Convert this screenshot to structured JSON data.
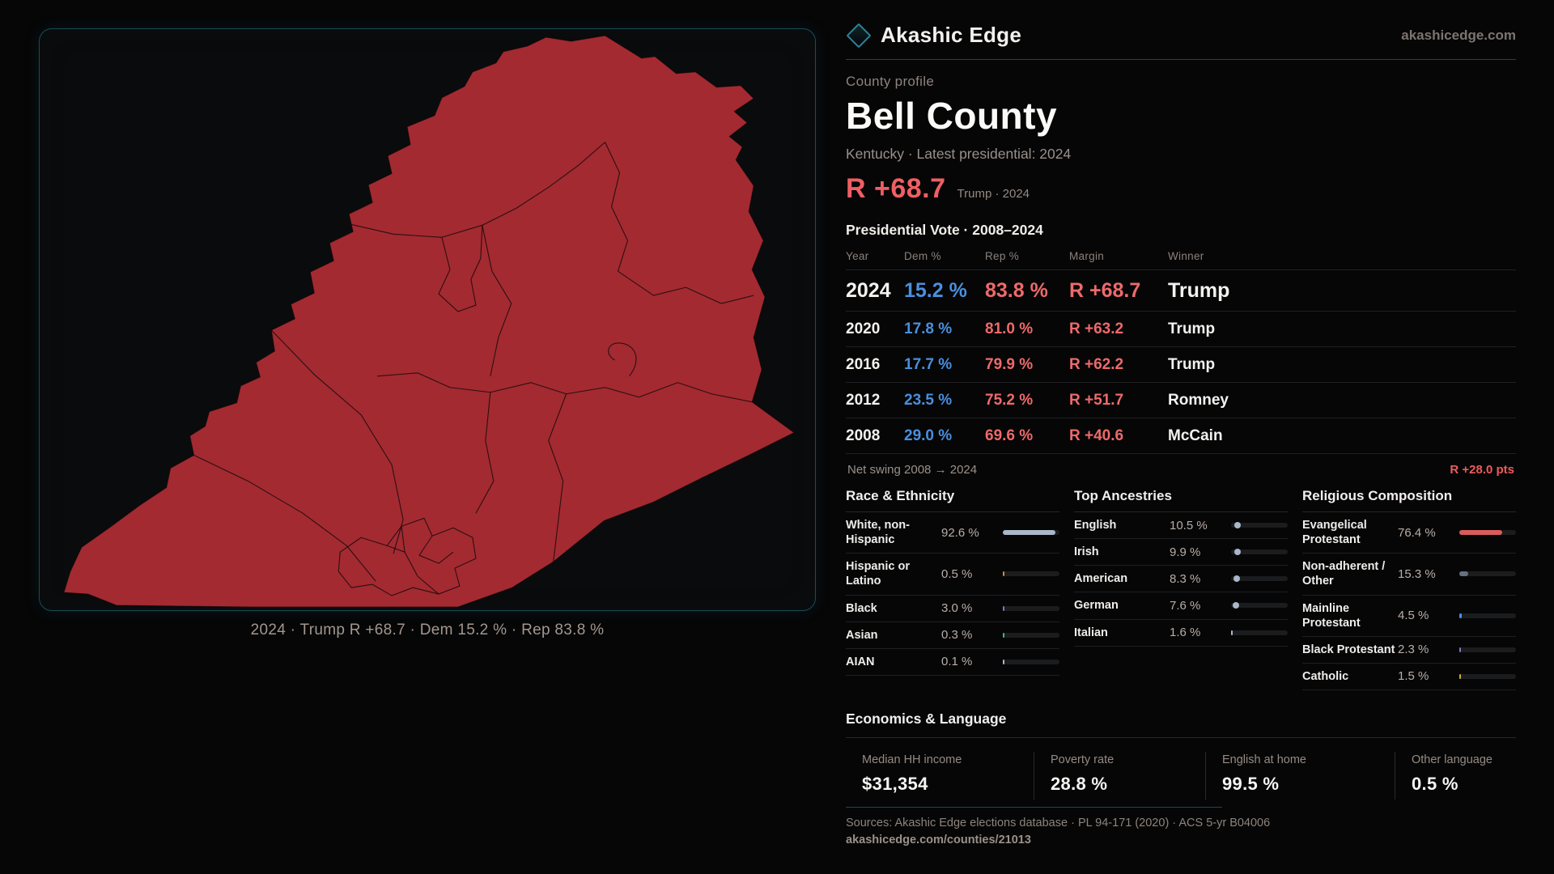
{
  "brand": {
    "name": "Akashic Edge",
    "site": "akashicedge.com",
    "accent_teal": "#2d8398"
  },
  "profile": {
    "kicker": "County profile",
    "title": "Bell County",
    "subtitle": "Kentucky · Latest presidential: 2024",
    "headline_margin": "R +68.7",
    "headline_note": "Trump · 2024"
  },
  "vote_table": {
    "title": "Presidential Vote · 2008–2024",
    "columns": [
      "Year",
      "Dem %",
      "Rep %",
      "Margin",
      "Winner"
    ],
    "dem_color": "#4a8fdd",
    "rep_color": "#ee6a6a",
    "rows": [
      {
        "year": "2024",
        "dem": "15.2 %",
        "rep": "83.8 %",
        "margin": "R +68.7",
        "winner": "Trump"
      },
      {
        "year": "2020",
        "dem": "17.8 %",
        "rep": "81.0 %",
        "margin": "R +63.2",
        "winner": "Trump"
      },
      {
        "year": "2016",
        "dem": "17.7 %",
        "rep": "79.9 %",
        "margin": "R +62.2",
        "winner": "Trump"
      },
      {
        "year": "2012",
        "dem": "23.5 %",
        "rep": "75.2 %",
        "margin": "R +51.7",
        "winner": "Romney"
      },
      {
        "year": "2008",
        "dem": "29.0 %",
        "rep": "69.6 %",
        "margin": "R +40.6",
        "winner": "McCain"
      }
    ]
  },
  "net_swing": {
    "label": "Net swing 2008 → 2024",
    "value": "R +28.0 pts"
  },
  "demographics": {
    "race": {
      "title": "Race & Ethnicity",
      "rows": [
        {
          "label": "White, non-Hispanic",
          "value": "92.6 %",
          "pct": 92.6,
          "color": "#a9b7c9",
          "kind": "bar"
        },
        {
          "label": "Hispanic or Latino",
          "value": "0.5 %",
          "pct": 0.5,
          "color": "#cf8a33",
          "kind": "bar"
        },
        {
          "label": "Black",
          "value": "3.0 %",
          "pct": 3.0,
          "color": "#8a70cc",
          "kind": "bar"
        },
        {
          "label": "Asian",
          "value": "0.3 %",
          "pct": 0.3,
          "color": "#35b98a",
          "kind": "bar"
        },
        {
          "label": "AIAN",
          "value": "0.1 %",
          "pct": 0.1,
          "color": "#a9b7c9",
          "kind": "bar"
        }
      ]
    },
    "ancestry": {
      "title": "Top Ancestries",
      "rows": [
        {
          "label": "English",
          "value": "10.5 %",
          "pct": 10.5,
          "color": "#a9b7c9",
          "kind": "dot"
        },
        {
          "label": "Irish",
          "value": "9.9 %",
          "pct": 9.9,
          "color": "#a9b7c9",
          "kind": "dot"
        },
        {
          "label": "American",
          "value": "8.3 %",
          "pct": 8.3,
          "color": "#a9b7c9",
          "kind": "dot"
        },
        {
          "label": "German",
          "value": "7.6 %",
          "pct": 7.6,
          "color": "#a9b7c9",
          "kind": "dot"
        },
        {
          "label": "Italian",
          "value": "1.6 %",
          "pct": 1.6,
          "color": "#a9b7c9",
          "kind": "bar"
        }
      ]
    },
    "religion": {
      "title": "Religious Composition",
      "rows": [
        {
          "label": "Evangelical Protestant",
          "value": "76.4 %",
          "pct": 76.4,
          "color": "#d95c5c",
          "kind": "bar"
        },
        {
          "label": "Non-adherent / Other",
          "value": "15.3 %",
          "pct": 15.3,
          "color": "#667083",
          "kind": "bar"
        },
        {
          "label": "Mainline Protestant",
          "value": "4.5 %",
          "pct": 4.5,
          "color": "#4a90e2",
          "kind": "bar"
        },
        {
          "label": "Black Protestant",
          "value": "2.3 %",
          "pct": 2.3,
          "color": "#8a70cc",
          "kind": "bar"
        },
        {
          "label": "Catholic",
          "value": "1.5 %",
          "pct": 1.5,
          "color": "#d3ac35",
          "kind": "bar"
        }
      ]
    }
  },
  "economics": {
    "title": "Economics & Language",
    "stats": [
      {
        "label": "Median HH income",
        "value": "$31,354"
      },
      {
        "label": "Poverty rate",
        "value": "28.8 %"
      },
      {
        "label": "English at home",
        "value": "99.5 %"
      },
      {
        "label": "Other language",
        "value": "0.5 %"
      }
    ]
  },
  "sources": {
    "line1": "Sources: Akashic Edge elections database · PL 94-171 (2020) · ACS 5-yr B04006",
    "line2": "akashicedge.com/counties/21013"
  },
  "map": {
    "caption": "2024 · Trump R +68.7 · Dem 15.2 % · Rep 83.8 %",
    "fill_color": "#a32a31"
  }
}
